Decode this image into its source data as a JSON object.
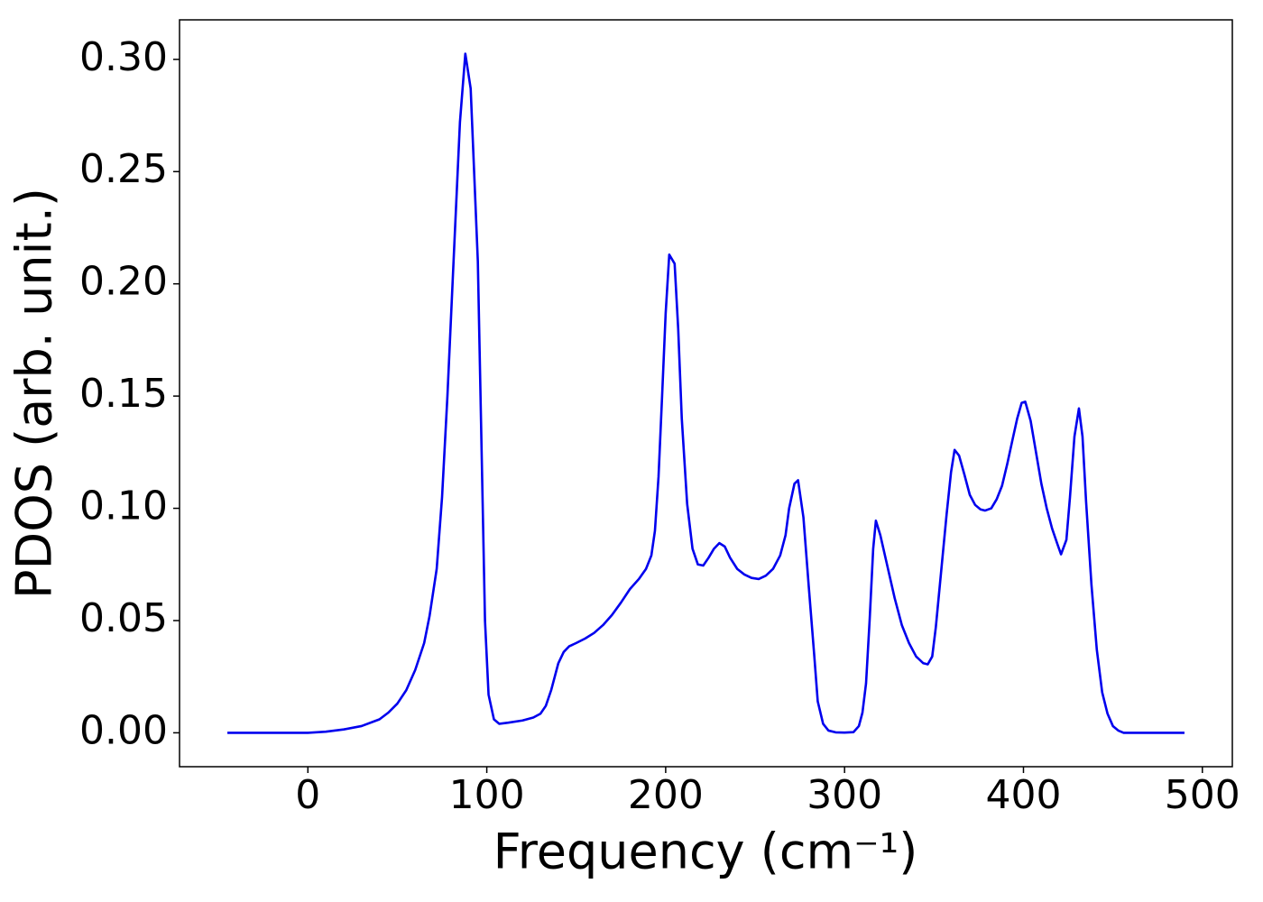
{
  "chart_data": {
    "type": "line",
    "xlabel": "Frequency (cm⁻¹)",
    "ylabel": "PDOS (arb. unit.)",
    "xlim": [
      -71.75,
      516.75
    ],
    "ylim": [
      -0.0151,
      0.3176
    ],
    "xticks": [
      0,
      100,
      200,
      300,
      400,
      500
    ],
    "yticks": [
      {
        "value": 0,
        "label": "0.00"
      },
      {
        "value": 0.05,
        "label": "0.05"
      },
      {
        "value": 0.1,
        "label": "0.10"
      },
      {
        "value": 0.15,
        "label": "0.15"
      },
      {
        "value": 0.2,
        "label": "0.20"
      },
      {
        "value": 0.25,
        "label": "0.25"
      },
      {
        "value": 0.3,
        "label": "0.30"
      }
    ],
    "grid": false,
    "x": [
      -45,
      0,
      10,
      20,
      30,
      40,
      45,
      50,
      55,
      60,
      65,
      68,
      72,
      75,
      78,
      82,
      85,
      88,
      91,
      95,
      99,
      101,
      104,
      107,
      112,
      120,
      126,
      130,
      133,
      136,
      140,
      143,
      146,
      150,
      155,
      160,
      165,
      170,
      175,
      180,
      185,
      189,
      192,
      194,
      196,
      198,
      200,
      202,
      205,
      207,
      209,
      212,
      215,
      218,
      221,
      224,
      227,
      230,
      233,
      236,
      240,
      244,
      248,
      252,
      256,
      260,
      264,
      267,
      269,
      272,
      274,
      277,
      280,
      283,
      285,
      288,
      291,
      295,
      300,
      305,
      308,
      310,
      312,
      314,
      316,
      317.5,
      320,
      324,
      328,
      332,
      336,
      340,
      344,
      346.5,
      349,
      351,
      354,
      357,
      359.5,
      361.5,
      364,
      367,
      370,
      373,
      376,
      378.5,
      382,
      385,
      388,
      391,
      394,
      396.5,
      399,
      401,
      404,
      407,
      410,
      413,
      416,
      419,
      421,
      424,
      426,
      428.5,
      431,
      433,
      435,
      438,
      441,
      444,
      447,
      450,
      453,
      456,
      490
    ],
    "series": [
      {
        "name": "PDOS",
        "color": "#0000ee",
        "values": [
          0,
          0,
          0.0005,
          0.0015,
          0.003,
          0.006,
          0.009,
          0.013,
          0.019,
          0.028,
          0.04,
          0.052,
          0.073,
          0.105,
          0.15,
          0.22,
          0.272,
          0.3025,
          0.287,
          0.21,
          0.05,
          0.017,
          0.006,
          0.004,
          0.0045,
          0.0055,
          0.0068,
          0.0085,
          0.012,
          0.019,
          0.031,
          0.036,
          0.0385,
          0.04,
          0.042,
          0.0445,
          0.048,
          0.0525,
          0.058,
          0.064,
          0.0685,
          0.073,
          0.079,
          0.09,
          0.114,
          0.15,
          0.187,
          0.213,
          0.209,
          0.18,
          0.14,
          0.102,
          0.082,
          0.075,
          0.0745,
          0.078,
          0.082,
          0.0845,
          0.083,
          0.078,
          0.073,
          0.0705,
          0.069,
          0.0685,
          0.07,
          0.073,
          0.079,
          0.088,
          0.1,
          0.111,
          0.1125,
          0.096,
          0.065,
          0.035,
          0.014,
          0.004,
          0.001,
          0.0002,
          0.0001,
          0.0003,
          0.003,
          0.009,
          0.022,
          0.05,
          0.082,
          0.0945,
          0.088,
          0.074,
          0.06,
          0.048,
          0.04,
          0.034,
          0.031,
          0.0305,
          0.034,
          0.047,
          0.072,
          0.097,
          0.116,
          0.126,
          0.1235,
          0.115,
          0.106,
          0.1015,
          0.0995,
          0.099,
          0.1,
          0.104,
          0.11,
          0.12,
          0.131,
          0.14,
          0.147,
          0.1475,
          0.139,
          0.125,
          0.111,
          0.1,
          0.091,
          0.084,
          0.0795,
          0.086,
          0.105,
          0.132,
          0.1445,
          0.132,
          0.103,
          0.066,
          0.037,
          0.018,
          0.0085,
          0.003,
          0.001,
          0,
          0
        ]
      }
    ]
  }
}
